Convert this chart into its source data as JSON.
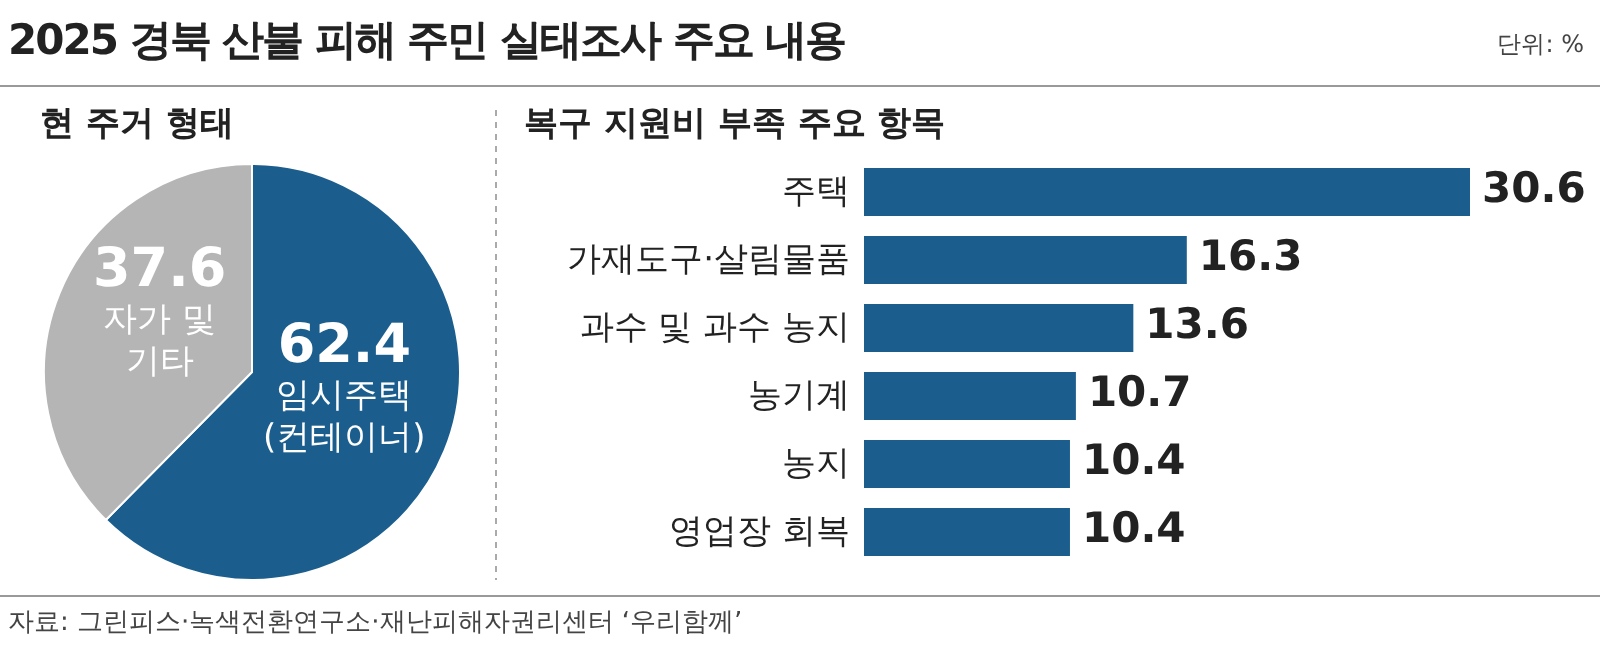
{
  "chart_data": [
    {
      "type": "pie",
      "title": "2025 경북 산불 피해 주민 실태조사 주요 내용",
      "subtitle": "현 주거 형태",
      "annotations": [
        "단위: %",
        "자료: 그린피스·녹색전환연구소·재난피해자권리센터 ‘우리함께’"
      ],
      "categories": [
        "임시주택 (컨테이너)",
        "자가 및 기타"
      ],
      "values": [
        62.4,
        37.6
      ],
      "colors": [
        "#1b5e8e",
        "#b5b5b5"
      ],
      "data_labels": true
    },
    {
      "type": "bar",
      "orientation": "horizontal",
      "title": "복구 지원비 부족 주요 항목",
      "categories": [
        "주택",
        "가재도구·살림물품",
        "과수 및 과수 농지",
        "농기계",
        "농지",
        "영업장 회복"
      ],
      "values": [
        30.6,
        16.3,
        13.6,
        10.7,
        10.4,
        10.4
      ],
      "color": "#1b5e8e",
      "data_labels": true
    }
  ]
}
